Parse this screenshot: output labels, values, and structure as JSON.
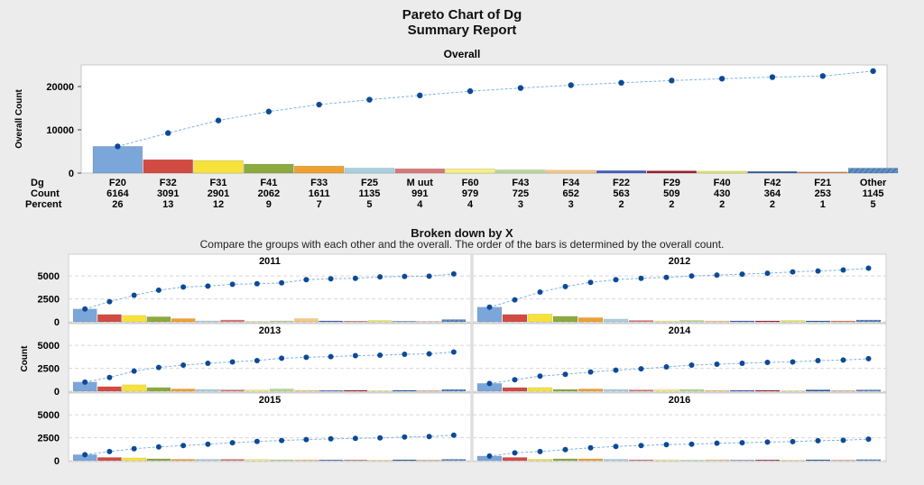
{
  "title": "Pareto Chart of Dg",
  "subtitle": "Summary Report",
  "overall": {
    "heading": "Overall",
    "ylabel": "Overall Count",
    "yticks": [
      "20000",
      "10000",
      "0"
    ],
    "row_labels": {
      "category": "Dg",
      "count": "Count",
      "percent": "Percent"
    }
  },
  "breakdown": {
    "heading": "Broken down by X",
    "note": "Compare the groups with each other and the overall. The order of the bars is determined by the overall count.",
    "ylabel": "Count",
    "yticks": [
      "5000",
      "2500",
      "0"
    ]
  },
  "chart_data": [
    {
      "type": "bar",
      "title": "Overall",
      "xlabel": "Dg",
      "ylabel": "Overall Count",
      "ylim": [
        0,
        25000
      ],
      "grid": false,
      "categories": [
        "F20",
        "F32",
        "F31",
        "F41",
        "F33",
        "F25",
        "M uut",
        "F60",
        "F43",
        "F34",
        "F22",
        "F29",
        "F40",
        "F42",
        "F21",
        "Other"
      ],
      "values": [
        6164,
        3091,
        2901,
        2062,
        1611,
        1135,
        991,
        979,
        725,
        652,
        563,
        509,
        430,
        364,
        253,
        1145
      ],
      "percent": [
        26,
        13,
        12,
        9,
        7,
        5,
        4,
        4,
        3,
        3,
        2,
        2,
        2,
        2,
        1,
        5
      ],
      "cumulative": [
        6164,
        9255,
        12156,
        14218,
        15829,
        16964,
        17955,
        18934,
        19659,
        20311,
        20874,
        21383,
        21813,
        22177,
        22430,
        23575
      ]
    },
    {
      "type": "bar",
      "title": "Broken down by X",
      "ylabel": "Count",
      "ylim": [
        0,
        6000
      ],
      "grid": true,
      "categories": [
        "F20",
        "F32",
        "F31",
        "F41",
        "F33",
        "F25",
        "M uut",
        "F60",
        "F43",
        "F34",
        "F22",
        "F29",
        "F40",
        "F42",
        "F21",
        "Other"
      ],
      "panels": [
        {
          "name": "2011",
          "values": [
            1400,
            800,
            700,
            550,
            350,
            100,
            200,
            50,
            100,
            350,
            100,
            50,
            150,
            50,
            30,
            250
          ],
          "cumulative": [
            1400,
            2200,
            2900,
            3450,
            3800,
            3900,
            4100,
            4150,
            4250,
            4600,
            4700,
            4750,
            4900,
            4950,
            4980,
            5230
          ]
        },
        {
          "name": "2012",
          "values": [
            1600,
            800,
            850,
            600,
            450,
            300,
            150,
            100,
            150,
            100,
            100,
            100,
            150,
            100,
            100,
            200
          ],
          "cumulative": [
            1600,
            2400,
            3250,
            3850,
            4300,
            4600,
            4750,
            4850,
            5000,
            5100,
            5200,
            5300,
            5450,
            5550,
            5650,
            5850
          ]
        },
        {
          "name": "2013",
          "values": [
            1000,
            500,
            700,
            400,
            250,
            200,
            150,
            150,
            250,
            100,
            80,
            100,
            50,
            100,
            50,
            200
          ],
          "cumulative": [
            1000,
            1500,
            2200,
            2600,
            2850,
            3050,
            3200,
            3350,
            3600,
            3700,
            3780,
            3880,
            3930,
            4030,
            4080,
            4280
          ]
        },
        {
          "name": "2014",
          "values": [
            850,
            400,
            400,
            200,
            250,
            200,
            150,
            200,
            200,
            100,
            100,
            100,
            50,
            150,
            50,
            150
          ],
          "cumulative": [
            850,
            1250,
            1650,
            1850,
            2100,
            2300,
            2450,
            2650,
            2850,
            2950,
            3050,
            3150,
            3200,
            3350,
            3400,
            3550
          ]
        },
        {
          "name": "2015",
          "values": [
            650,
            350,
            300,
            200,
            150,
            150,
            150,
            150,
            100,
            100,
            80,
            50,
            50,
            100,
            50,
            150
          ],
          "cumulative": [
            650,
            1000,
            1300,
            1500,
            1650,
            1800,
            1950,
            2100,
            2200,
            2300,
            2380,
            2430,
            2480,
            2580,
            2630,
            2780
          ]
        },
        {
          "name": "2016",
          "values": [
            500,
            350,
            150,
            200,
            200,
            150,
            100,
            100,
            50,
            100,
            50,
            80,
            50,
            100,
            50,
            120
          ],
          "cumulative": [
            500,
            850,
            1000,
            1200,
            1400,
            1550,
            1650,
            1750,
            1800,
            1900,
            1950,
            2030,
            2080,
            2180,
            2230,
            2350
          ]
        }
      ]
    }
  ],
  "colors": [
    "#7aa6da",
    "#d24b43",
    "#f7e23b",
    "#8caa3e",
    "#f0a030",
    "#a8d0e0",
    "#d87878",
    "#f8f080",
    "#b8d890",
    "#f8c880",
    "#4060c0",
    "#a02030",
    "#e8e860",
    "#3060a0",
    "#e08050",
    "#6090c8"
  ],
  "line_color": "#7fb3e3",
  "dot_color": "#0d4a96"
}
